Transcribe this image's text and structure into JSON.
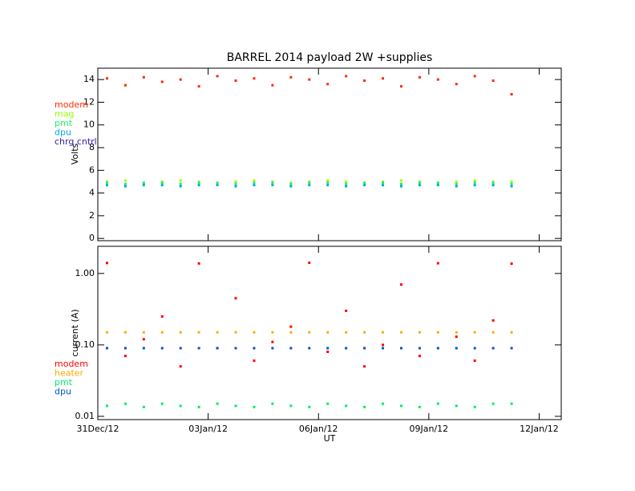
{
  "chart_data": [
    {
      "type": "scatter",
      "title": "BARREL 2014 payload 2W +supplies",
      "y_label": "Volts",
      "x": [
        0.25,
        0.75,
        1.25,
        1.75,
        2.25,
        2.75,
        3.25,
        3.75,
        4.25,
        4.75,
        5.25,
        5.75,
        6.25,
        6.75,
        7.25,
        7.75,
        8.25,
        8.75,
        9.25,
        9.75,
        10.25,
        10.75,
        11.25
      ],
      "xlim": [
        0,
        12.6
      ],
      "xticks": [
        0,
        3,
        6,
        9,
        12
      ],
      "ylim": [
        -0.2,
        15
      ],
      "yticks": [
        0,
        2,
        4,
        6,
        8,
        10,
        12,
        14
      ],
      "series": [
        {
          "name": "modem",
          "color": "#ff2a00",
          "values": [
            14.1,
            13.5,
            14.2,
            13.8,
            14.0,
            13.4,
            14.3,
            13.9,
            14.1,
            13.5,
            14.2,
            14.0,
            13.6,
            14.3,
            13.9,
            14.1,
            13.4,
            14.2,
            14.0,
            13.6,
            14.3,
            13.9,
            12.7
          ]
        },
        {
          "name": "mag",
          "color": "#99ff00",
          "values": [
            5.0,
            5.1,
            4.9,
            5.0,
            5.1,
            5.0,
            4.9,
            5.0,
            5.1,
            5.0,
            4.9,
            5.0,
            5.1,
            5.0,
            4.9,
            5.0,
            5.1,
            5.0,
            4.9,
            5.0,
            5.1,
            5.0,
            5.0
          ]
        },
        {
          "name": "pmt",
          "color": "#22ee66",
          "values": [
            4.9,
            4.8,
            4.9,
            4.9,
            4.8,
            4.9,
            4.9,
            4.8,
            4.9,
            4.9,
            4.8,
            4.9,
            4.9,
            4.8,
            4.9,
            4.9,
            4.8,
            4.9,
            4.9,
            4.8,
            4.9,
            4.9,
            4.8
          ]
        },
        {
          "name": "dpu",
          "color": "#00aadd",
          "values": [
            4.7,
            4.6,
            4.7,
            4.7,
            4.6,
            4.7,
            4.7,
            4.6,
            4.7,
            4.7,
            4.6,
            4.7,
            4.7,
            4.6,
            4.7,
            4.7,
            4.6,
            4.7,
            4.7,
            4.6,
            4.7,
            4.7,
            4.6
          ]
        },
        {
          "name": "chrg cntrl",
          "color": "#3322aa",
          "values": [
            null,
            null,
            null,
            null,
            null,
            null,
            null,
            null,
            null,
            null,
            null,
            null,
            null,
            null,
            null,
            null,
            null,
            null,
            null,
            null,
            null,
            null,
            null
          ]
        }
      ]
    },
    {
      "type": "scatter",
      "y_label": "current (A)",
      "x_label": "UT",
      "log_y": true,
      "x": [
        0.25,
        0.75,
        1.25,
        1.75,
        2.25,
        2.75,
        3.25,
        3.75,
        4.25,
        4.75,
        5.25,
        5.75,
        6.25,
        6.75,
        7.25,
        7.75,
        8.25,
        8.75,
        9.25,
        9.75,
        10.25,
        10.75,
        11.25
      ],
      "xlim": [
        0,
        12.6
      ],
      "xticks": [
        {
          "value": 0,
          "label": "31Dec/12"
        },
        {
          "value": 3,
          "label": "03Jan/12"
        },
        {
          "value": 6,
          "label": "06Jan/12"
        },
        {
          "value": 9,
          "label": "09Jan/12"
        },
        {
          "value": 12,
          "label": "12Jan/12"
        }
      ],
      "ylim": [
        0.009,
        2.4
      ],
      "yticks": [
        {
          "value": 0.01,
          "label": "0.01"
        },
        {
          "value": 0.1,
          "label": "0.10"
        },
        {
          "value": 1,
          "label": "1.00"
        }
      ],
      "series": [
        {
          "name": "modem",
          "color": "#ff0000",
          "values": [
            1.4,
            0.07,
            0.12,
            0.25,
            0.05,
            1.38,
            0.09,
            0.45,
            0.06,
            0.11,
            0.18,
            1.41,
            0.08,
            0.3,
            0.05,
            0.1,
            0.7,
            0.07,
            1.39,
            0.13,
            0.06,
            0.22,
            1.37
          ]
        },
        {
          "name": "heater",
          "color": "#ffaa00",
          "values": [
            0.15,
            0.15,
            0.15,
            0.15,
            0.15,
            0.15,
            0.15,
            0.15,
            0.15,
            0.15,
            0.15,
            0.15,
            0.15,
            0.15,
            0.15,
            0.15,
            0.15,
            0.15,
            0.15,
            0.15,
            0.15,
            0.15,
            0.15
          ]
        },
        {
          "name": "pmt",
          "color": "#00ee66",
          "values": [
            0.014,
            0.015,
            0.0135,
            0.015,
            0.014,
            0.0135,
            0.015,
            0.014,
            0.0135,
            0.015,
            0.014,
            0.0135,
            0.015,
            0.014,
            0.0135,
            0.015,
            0.014,
            0.0135,
            0.015,
            0.014,
            0.0135,
            0.015,
            0.015
          ]
        },
        {
          "name": "dpu",
          "color": "#0055cc",
          "values": [
            0.09,
            0.09,
            0.09,
            0.09,
            0.09,
            0.09,
            0.09,
            0.09,
            0.09,
            0.09,
            0.09,
            0.09,
            0.09,
            0.09,
            0.09,
            0.09,
            0.09,
            0.09,
            0.09,
            0.09,
            0.09,
            0.09,
            0.09
          ]
        }
      ]
    }
  ]
}
